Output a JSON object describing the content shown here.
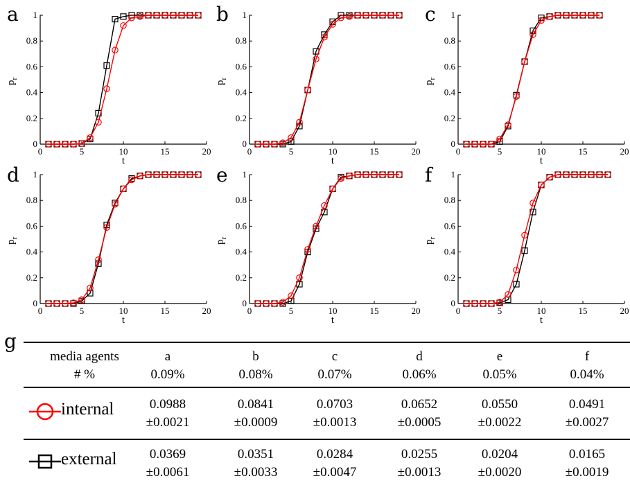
{
  "chart_data": [
    {
      "panel": "a",
      "type": "line",
      "xlabel": "t",
      "ylabel": "p_r",
      "xlim": [
        0,
        20
      ],
      "ylim": [
        0,
        1
      ],
      "xticks": [
        0,
        5,
        10,
        15,
        20
      ],
      "yticks": [
        0,
        0.2,
        0.4,
        0.6,
        0.8,
        1
      ],
      "series": [
        {
          "name": "internal",
          "color": "#ff0000",
          "marker": "circle",
          "x": [
            1,
            2,
            3,
            4,
            5,
            6,
            7,
            8,
            9,
            10,
            11,
            12,
            13,
            14,
            15,
            16,
            17,
            18,
            19
          ],
          "y": [
            0,
            0,
            0,
            0,
            0.005,
            0.05,
            0.17,
            0.43,
            0.73,
            0.92,
            0.98,
            0.99,
            1,
            1,
            1,
            1,
            1,
            1,
            1
          ]
        },
        {
          "name": "external",
          "color": "#000000",
          "marker": "square",
          "x": [
            1,
            2,
            3,
            4,
            5,
            6,
            7,
            8,
            9,
            10,
            11,
            12,
            13,
            14,
            15,
            16,
            17,
            18,
            19
          ],
          "y": [
            0,
            0,
            0,
            0,
            0.005,
            0.04,
            0.24,
            0.61,
            0.97,
            0.99,
            1,
            1,
            1,
            1,
            1,
            1,
            1,
            1,
            1
          ]
        }
      ]
    },
    {
      "panel": "b",
      "type": "line",
      "xlabel": "t",
      "ylabel": "p_r",
      "xlim": [
        0,
        20
      ],
      "ylim": [
        0,
        1
      ],
      "xticks": [
        0,
        5,
        10,
        15,
        20
      ],
      "yticks": [
        0,
        0.2,
        0.4,
        0.6,
        0.8,
        1
      ],
      "series": [
        {
          "name": "internal",
          "color": "#ff0000",
          "marker": "circle",
          "x": [
            1,
            2,
            3,
            4,
            5,
            6,
            7,
            8,
            9,
            10,
            11,
            12,
            13,
            14,
            15,
            16,
            17,
            18
          ],
          "y": [
            0,
            0,
            0,
            0.01,
            0.05,
            0.17,
            0.42,
            0.66,
            0.83,
            0.93,
            0.98,
            0.99,
            1,
            1,
            1,
            1,
            1,
            1
          ]
        },
        {
          "name": "external",
          "color": "#000000",
          "marker": "square",
          "x": [
            1,
            2,
            3,
            4,
            5,
            6,
            7,
            8,
            9,
            10,
            11,
            12,
            13,
            14,
            15,
            16,
            17,
            18
          ],
          "y": [
            0,
            0,
            0,
            0,
            0.02,
            0.14,
            0.42,
            0.72,
            0.85,
            0.95,
            1,
            1,
            1,
            1,
            1,
            1,
            1,
            1
          ]
        }
      ]
    },
    {
      "panel": "c",
      "type": "line",
      "xlabel": "t",
      "ylabel": "p_r",
      "xlim": [
        0,
        20
      ],
      "ylim": [
        0,
        1
      ],
      "xticks": [
        0,
        5,
        10,
        15,
        20
      ],
      "yticks": [
        0,
        0.2,
        0.4,
        0.6,
        0.8,
        1
      ],
      "series": [
        {
          "name": "internal",
          "color": "#ff0000",
          "marker": "circle",
          "x": [
            1,
            2,
            3,
            4,
            5,
            6,
            7,
            8,
            9,
            10,
            11,
            12,
            13,
            14,
            15,
            16,
            17
          ],
          "y": [
            0,
            0,
            0,
            0,
            0.04,
            0.15,
            0.37,
            0.64,
            0.85,
            0.96,
            0.99,
            1,
            1,
            1,
            1,
            1,
            1
          ]
        },
        {
          "name": "external",
          "color": "#000000",
          "marker": "square",
          "x": [
            1,
            2,
            3,
            4,
            5,
            6,
            7,
            8,
            9,
            10,
            11,
            12,
            13,
            14,
            15,
            16,
            17
          ],
          "y": [
            0,
            0,
            0,
            0,
            0.02,
            0.14,
            0.38,
            0.64,
            0.88,
            0.98,
            0.99,
            1,
            1,
            1,
            1,
            1,
            1
          ]
        }
      ]
    },
    {
      "panel": "d",
      "type": "line",
      "xlabel": "t",
      "ylabel": "p_r",
      "xlim": [
        0,
        20
      ],
      "ylim": [
        0,
        1
      ],
      "xticks": [
        0,
        5,
        10,
        15,
        20
      ],
      "yticks": [
        0,
        0.2,
        0.4,
        0.6,
        0.8,
        1
      ],
      "series": [
        {
          "name": "internal",
          "color": "#ff0000",
          "marker": "circle",
          "x": [
            1,
            2,
            3,
            4,
            5,
            6,
            7,
            8,
            9,
            10,
            11,
            12,
            13,
            14,
            15,
            16,
            17,
            18,
            19
          ],
          "y": [
            0,
            0,
            0,
            0.005,
            0.03,
            0.12,
            0.34,
            0.59,
            0.77,
            0.89,
            0.96,
            0.99,
            1,
            1,
            1,
            1,
            1,
            1,
            1
          ]
        },
        {
          "name": "external",
          "color": "#000000",
          "marker": "square",
          "x": [
            1,
            2,
            3,
            4,
            5,
            6,
            7,
            8,
            9,
            10,
            11,
            12,
            13,
            14,
            15,
            16,
            17,
            18,
            19
          ],
          "y": [
            0,
            0,
            0,
            0,
            0.02,
            0.08,
            0.31,
            0.61,
            0.78,
            0.89,
            0.97,
            0.99,
            1,
            1,
            1,
            1,
            1,
            1,
            1
          ]
        }
      ]
    },
    {
      "panel": "e",
      "type": "line",
      "xlabel": "t",
      "ylabel": "p_r",
      "xlim": [
        0,
        20
      ],
      "ylim": [
        0,
        1
      ],
      "xticks": [
        0,
        5,
        10,
        15,
        20
      ],
      "yticks": [
        0,
        0.2,
        0.4,
        0.6,
        0.8,
        1
      ],
      "series": [
        {
          "name": "internal",
          "color": "#ff0000",
          "marker": "circle",
          "x": [
            1,
            2,
            3,
            4,
            5,
            6,
            7,
            8,
            9,
            10,
            11,
            12,
            13,
            14,
            15,
            16,
            17,
            18
          ],
          "y": [
            0,
            0,
            0,
            0.01,
            0.06,
            0.2,
            0.42,
            0.6,
            0.76,
            0.89,
            0.97,
            0.99,
            1,
            1,
            1,
            1,
            1,
            1
          ]
        },
        {
          "name": "external",
          "color": "#000000",
          "marker": "square",
          "x": [
            1,
            2,
            3,
            4,
            5,
            6,
            7,
            8,
            9,
            10,
            11,
            12,
            13,
            14,
            15,
            16,
            17,
            18
          ],
          "y": [
            0,
            0,
            0,
            0,
            0.02,
            0.15,
            0.4,
            0.58,
            0.71,
            0.89,
            0.98,
            0.99,
            1,
            1,
            1,
            1,
            1,
            1
          ]
        }
      ]
    },
    {
      "panel": "f",
      "type": "line",
      "xlabel": "t",
      "ylabel": "p_r",
      "xlim": [
        0,
        20
      ],
      "ylim": [
        0,
        1
      ],
      "xticks": [
        0,
        5,
        10,
        15,
        20
      ],
      "yticks": [
        0,
        0.2,
        0.4,
        0.6,
        0.8,
        1
      ],
      "series": [
        {
          "name": "internal",
          "color": "#ff0000",
          "marker": "circle",
          "x": [
            1,
            2,
            3,
            4,
            5,
            6,
            7,
            8,
            9,
            10,
            11,
            12,
            13,
            14,
            15,
            16,
            17,
            18
          ],
          "y": [
            0,
            0,
            0,
            0,
            0.01,
            0.07,
            0.26,
            0.53,
            0.78,
            0.92,
            0.98,
            1,
            1,
            1,
            1,
            1,
            1,
            1
          ]
        },
        {
          "name": "external",
          "color": "#000000",
          "marker": "square",
          "x": [
            1,
            2,
            3,
            4,
            5,
            6,
            7,
            8,
            9,
            10,
            11,
            12,
            13,
            14,
            15,
            16,
            17,
            18
          ],
          "y": [
            0,
            0,
            0,
            0,
            0.005,
            0.03,
            0.15,
            0.41,
            0.71,
            0.92,
            0.98,
            1,
            1,
            1,
            1,
            1,
            1,
            1
          ]
        }
      ]
    }
  ],
  "table": {
    "label": "g",
    "header": {
      "line1": "media agents",
      "line2": "# %"
    },
    "columns": [
      {
        "letter": "a",
        "pct": "0.09%"
      },
      {
        "letter": "b",
        "pct": "0.08%"
      },
      {
        "letter": "c",
        "pct": "0.07%"
      },
      {
        "letter": "d",
        "pct": "0.06%"
      },
      {
        "letter": "e",
        "pct": "0.05%"
      },
      {
        "letter": "f",
        "pct": "0.04%"
      }
    ],
    "rows": [
      {
        "label": "internal",
        "color": "#ff0000",
        "marker": "circle",
        "values": [
          [
            "0.0988",
            "±0.0021"
          ],
          [
            "0.0841",
            "±0.0009"
          ],
          [
            "0.0703",
            "±0.0013"
          ],
          [
            "0.0652",
            "±0.0005"
          ],
          [
            "0.0550",
            "±0.0022"
          ],
          [
            "0.0491",
            "±0.0027"
          ]
        ]
      },
      {
        "label": "external",
        "color": "#000000",
        "marker": "square",
        "values": [
          [
            "0.0369",
            "±0.0061"
          ],
          [
            "0.0351",
            "±0.0033"
          ],
          [
            "0.0284",
            "±0.0047"
          ],
          [
            "0.0255",
            "±0.0013"
          ],
          [
            "0.0204",
            "±0.0020"
          ],
          [
            "0.0165",
            "±0.0019"
          ]
        ]
      }
    ]
  }
}
